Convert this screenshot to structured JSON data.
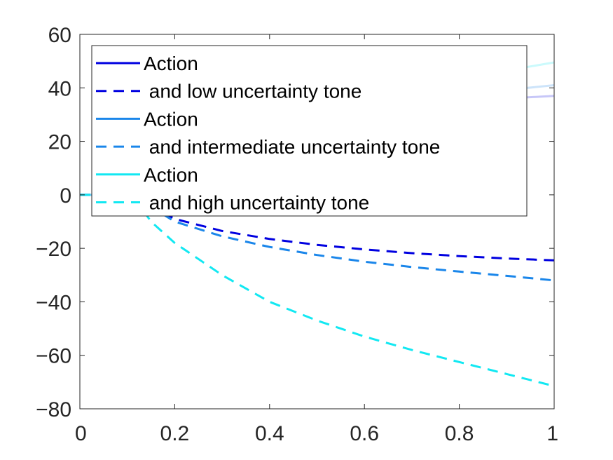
{
  "chart_data": {
    "type": "line",
    "title": "",
    "xlabel": "",
    "ylabel": "",
    "xlim": [
      0,
      1
    ],
    "ylim": [
      -80,
      60
    ],
    "x_ticks": [
      {
        "value": 0,
        "label": "0"
      },
      {
        "value": 0.2,
        "label": "0.2"
      },
      {
        "value": 0.4,
        "label": "0.4"
      },
      {
        "value": 0.6,
        "label": "0.6"
      },
      {
        "value": 0.8,
        "label": "0.8"
      },
      {
        "value": 1,
        "label": "1"
      }
    ],
    "y_ticks": [
      {
        "value": 60,
        "label": "60"
      },
      {
        "value": 40,
        "label": "40"
      },
      {
        "value": 20,
        "label": "20"
      },
      {
        "value": 0,
        "label": "0"
      },
      {
        "value": -20,
        "label": "−20"
      },
      {
        "value": -40,
        "label": "−40"
      },
      {
        "value": -60,
        "label": "−60"
      },
      {
        "value": -80,
        "label": "−80"
      }
    ],
    "grid": false,
    "legend_position": "top-left",
    "series": [
      {
        "name": "Action",
        "color": "#0000e0",
        "style": "solid",
        "faded": true,
        "x": [
          0,
          0.1,
          0.15,
          0.2,
          0.3,
          0.4,
          0.5,
          0.6,
          0.7,
          0.8,
          0.9,
          1
        ],
        "y": [
          0,
          0,
          4,
          10,
          18,
          24,
          28,
          31,
          33,
          34.5,
          36,
          37
        ]
      },
      {
        "name": " and low uncertainty tone",
        "color": "#0000e0",
        "style": "dashed",
        "faded": false,
        "x": [
          0,
          0.1,
          0.15,
          0.2,
          0.3,
          0.4,
          0.5,
          0.6,
          0.7,
          0.8,
          0.9,
          1
        ],
        "y": [
          0,
          0,
          -4,
          -9,
          -13.5,
          -16.5,
          -18.7,
          -20.4,
          -21.8,
          -22.9,
          -23.8,
          -24.5
        ]
      },
      {
        "name": "Action",
        "color": "#1a86ea",
        "style": "solid",
        "faded": true,
        "x": [
          0,
          0.1,
          0.15,
          0.2,
          0.3,
          0.4,
          0.5,
          0.6,
          0.7,
          0.8,
          0.9,
          1
        ],
        "y": [
          0,
          0,
          4.5,
          11,
          19,
          25,
          29.5,
          32.5,
          35,
          37,
          39.2,
          41
        ]
      },
      {
        "name": " and intermediate uncertainty tone",
        "color": "#1a86ea",
        "style": "dashed",
        "faded": false,
        "x": [
          0,
          0.1,
          0.15,
          0.2,
          0.3,
          0.4,
          0.5,
          0.6,
          0.7,
          0.8,
          0.9,
          1
        ],
        "y": [
          0,
          0,
          -4.5,
          -10,
          -15.5,
          -19.5,
          -22.5,
          -25,
          -27,
          -28.7,
          -30.3,
          -32
        ]
      },
      {
        "name": "Action",
        "color": "#12e8f2",
        "style": "solid",
        "faded": true,
        "x": [
          0,
          0.1,
          0.15,
          0.2,
          0.3,
          0.4,
          0.5,
          0.6,
          0.7,
          0.8,
          0.9,
          1
        ],
        "y": [
          0,
          0,
          5,
          12,
          21,
          28,
          33,
          37,
          40.5,
          43.5,
          46.5,
          49.5
        ]
      },
      {
        "name": " and high uncertainty tone",
        "color": "#12e8f2",
        "style": "dashed",
        "faded": false,
        "x": [
          0,
          0.1,
          0.13,
          0.15,
          0.2,
          0.3,
          0.4,
          0.5,
          0.6,
          0.7,
          0.8,
          0.9,
          1
        ],
        "y": [
          0,
          0,
          -5,
          -10,
          -18,
          -30,
          -40,
          -47,
          -53,
          -58,
          -62.5,
          -67,
          -71.5
        ]
      }
    ]
  }
}
